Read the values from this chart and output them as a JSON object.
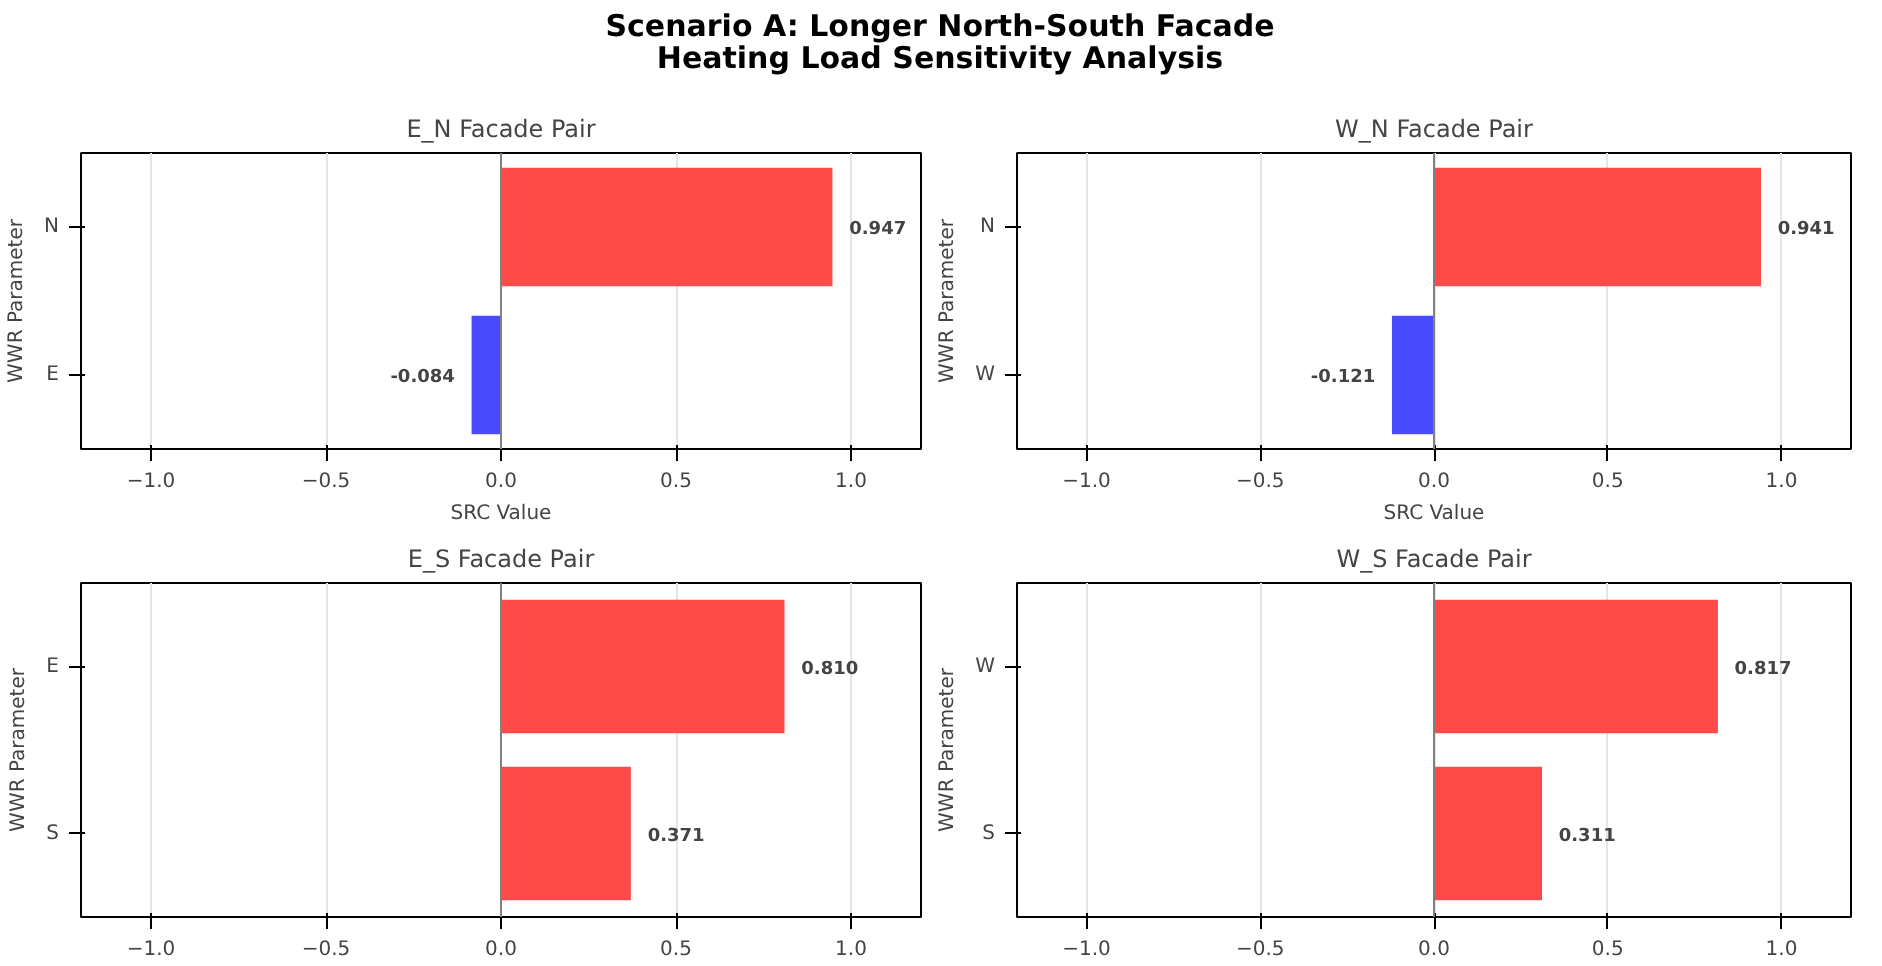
{
  "chart_data": [
    {
      "type": "other",
      "title": "Scenario A: Longer North-South Facade\nHeating Load Sensitivity Analysis"
    },
    {
      "type": "bar",
      "orientation": "horizontal",
      "title": "E_N Facade Pair",
      "xlabel": "SRC Value",
      "ylabel": "WWR Parameter",
      "categories": [
        "N",
        "E"
      ],
      "values": [
        0.947,
        -0.084
      ],
      "colors": [
        "#ff4a4a",
        "#4a4aff"
      ],
      "value_labels": [
        "0.947",
        "-0.084"
      ],
      "xlim": [
        -1.2,
        1.2
      ],
      "xticks": [
        {
          "value": -1,
          "label": "−1.0"
        },
        {
          "value": -0.5,
          "label": "−0.5"
        },
        {
          "value": 0,
          "label": "0.0"
        },
        {
          "value": 0.5,
          "label": "0.5"
        },
        {
          "value": 1,
          "label": "1.0"
        }
      ],
      "grid": "x",
      "ref_lines": [
        {
          "axis": "x",
          "value": 0,
          "color": "#808080"
        }
      ]
    },
    {
      "type": "bar",
      "orientation": "horizontal",
      "title": "W_N Facade Pair",
      "xlabel": "SRC Value",
      "ylabel": "WWR Parameter",
      "categories": [
        "N",
        "W"
      ],
      "values": [
        0.941,
        -0.121
      ],
      "colors": [
        "#ff4a4a",
        "#4a4aff"
      ],
      "value_labels": [
        "0.941",
        "-0.121"
      ],
      "xlim": [
        -1.2,
        1.2
      ],
      "xticks": [
        {
          "value": -1,
          "label": "−1.0"
        },
        {
          "value": -0.5,
          "label": "−0.5"
        },
        {
          "value": 0,
          "label": "0.0"
        },
        {
          "value": 0.5,
          "label": "0.5"
        },
        {
          "value": 1,
          "label": "1.0"
        }
      ],
      "grid": "x",
      "ref_lines": [
        {
          "axis": "x",
          "value": 0,
          "color": "#808080"
        }
      ]
    },
    {
      "type": "bar",
      "orientation": "horizontal",
      "title": "E_S Facade Pair",
      "ylabel": "WWR Parameter",
      "categories": [
        "E",
        "S"
      ],
      "values": [
        0.81,
        0.371
      ],
      "colors": [
        "#ff4a4a",
        "#ff4a4a"
      ],
      "value_labels": [
        "0.810",
        "0.371"
      ],
      "xlim": [
        -1.2,
        1.2
      ],
      "xticks": [
        {
          "value": -1,
          "label": "−1.0"
        },
        {
          "value": -0.5,
          "label": "−0.5"
        },
        {
          "value": 0,
          "label": "0.0"
        },
        {
          "value": 0.5,
          "label": "0.5"
        },
        {
          "value": 1,
          "label": "1.0"
        }
      ],
      "grid": "x",
      "ref_lines": [
        {
          "axis": "x",
          "value": 0,
          "color": "#808080"
        }
      ]
    },
    {
      "type": "bar",
      "orientation": "horizontal",
      "title": "W_S Facade Pair",
      "ylabel": "WWR Parameter",
      "categories": [
        "W",
        "S"
      ],
      "values": [
        0.817,
        0.311
      ],
      "colors": [
        "#ff4a4a",
        "#ff4a4a"
      ],
      "value_labels": [
        "0.817",
        "0.311"
      ],
      "xlim": [
        -1.2,
        1.2
      ],
      "xticks": [
        {
          "value": -1,
          "label": "−1.0"
        },
        {
          "value": -0.5,
          "label": "−0.5"
        },
        {
          "value": 0,
          "label": "0.0"
        },
        {
          "value": 0.5,
          "label": "0.5"
        },
        {
          "value": 1,
          "label": "1.0"
        }
      ],
      "grid": "x",
      "ref_lines": [
        {
          "axis": "x",
          "value": 0,
          "color": "#808080"
        }
      ]
    }
  ]
}
